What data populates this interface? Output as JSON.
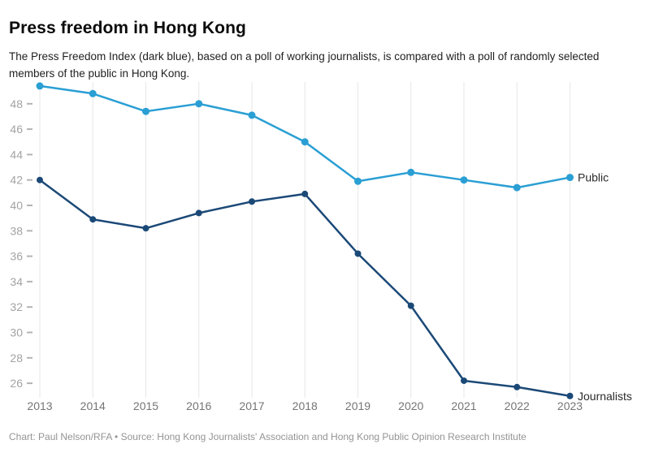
{
  "header": {
    "title": "Press freedom in Hong Kong",
    "subtitle": "The Press Freedom Index (dark blue), based on a poll of working journalists, is compared with a poll of randomly selected members of the public in Hong Kong."
  },
  "footer": {
    "attribution": "Chart: Paul Nelson/RFA • Source: Hong Kong Journalists' Association and Hong Kong Public Opinion Research Institute"
  },
  "colors": {
    "public_line": "#2A9FD4",
    "journalists_line": "#1B4977",
    "gridline": "#e7e7e7",
    "y_tick_label": "#a3a3a3",
    "y_tick_dash": "#b3b3b3",
    "x_tick_label": "#757575",
    "series_label": "#2b2b2b"
  },
  "chart_data": {
    "type": "line",
    "title": "Press freedom in Hong Kong",
    "x": [
      2013,
      2014,
      2015,
      2016,
      2017,
      2018,
      2019,
      2020,
      2021,
      2022,
      2023
    ],
    "series": [
      {
        "name": "Public",
        "values": [
          49.4,
          48.8,
          47.4,
          48.0,
          47.1,
          45.0,
          41.9,
          42.6,
          42.0,
          41.4,
          42.2
        ],
        "color_key": "public_line",
        "marker_radius": 4.5
      },
      {
        "name": "Journalists",
        "values": [
          42.0,
          38.9,
          38.2,
          39.4,
          40.3,
          40.9,
          36.2,
          32.1,
          26.2,
          25.7,
          25.0
        ],
        "color_key": "journalists_line",
        "marker_radius": 4
      }
    ],
    "y_ticks": [
      48,
      46,
      44,
      42,
      40,
      38,
      36,
      34,
      32,
      30,
      28,
      26
    ],
    "ylim": [
      24.5,
      49.9
    ],
    "grid": "vertical-only",
    "legend_position": "line-end-labels",
    "xlabel": "",
    "ylabel": ""
  }
}
